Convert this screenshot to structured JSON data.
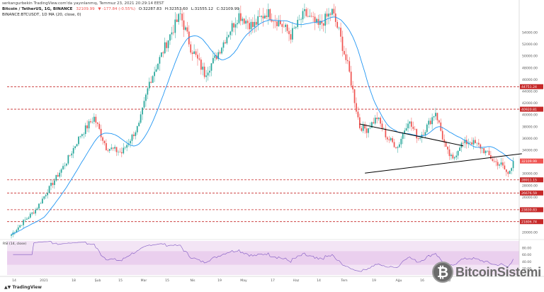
{
  "header": {
    "publish_line": "serkangurbekin TradingView.com'da yayınlanmış, Temmuz 23, 2021 20:29:14 EEST",
    "symbol_line": "BINANCE:BTCUSDT, 1D",
    "ohlc": [
      "32109.99",
      "▼ -177.84 (-0.55%)",
      "O:32287.83",
      "H:32353.60",
      "L:31555.12",
      "C:32109.99"
    ],
    "title_line": "Bitcoin / TetherUS, 1G, BINANCE",
    "ma_line": "MA (20, close, 0)"
  },
  "rsi_label": "RSI (14, close)",
  "branding": "TradingView",
  "watermark": {
    "text": "BitcoinSistemi",
    "coin_glyph": "₿"
  },
  "colors": {
    "up": "#26a69a",
    "down": "#ef5350",
    "ma": "#2196f3",
    "level": "#c62828",
    "rsi": "#7e57c2"
  },
  "chart_data": {
    "type": "candlestick",
    "title": "Bitcoin / TetherUS, 1G, BINANCE",
    "x_ticks": [
      "14",
      "2021",
      "18",
      "Şub",
      "15",
      "Mar",
      "15",
      "Nis",
      "19",
      "May",
      "17",
      "Haz",
      "14",
      "Tem",
      "19",
      "Ağu",
      "16",
      "Eki"
    ],
    "y_ticks": [
      "54000.00",
      "52000.00",
      "50000.00",
      "48000.00",
      "46000.00",
      "44000.00",
      "42000.00",
      "40000.00",
      "38000.00",
      "36000.00",
      "34000.00",
      "32000.00",
      "30000.00",
      "28000.00",
      "26000.00",
      "24000.00",
      "22000.00",
      "20000.00"
    ],
    "ylim": [
      19000,
      57800
    ],
    "levels": [
      44751.24,
      40920.81,
      28911.15,
      26676.59,
      23830.83,
      21806.74
    ],
    "current_price": 32109.99,
    "rsi_ticks": [
      "80.00",
      "60.00",
      "40.00",
      "20.00"
    ],
    "rsi_range": [
      0,
      100
    ],
    "triangle": {
      "upper": [
        [
          "Mayıs 19",
          38400
        ],
        [
          "Temmuz 9",
          34700
        ]
      ],
      "lower": [
        [
          "Mayıs 22",
          30050
        ],
        [
          "Temmuz 29",
          33350
        ]
      ]
    },
    "anchors": [
      {
        "t": 0,
        "p": 19600
      },
      {
        "t": 6,
        "p": 21500
      },
      {
        "t": 14,
        "p": 23800
      },
      {
        "t": 22,
        "p": 27500
      },
      {
        "t": 32,
        "p": 32000
      },
      {
        "t": 40,
        "p": 36500
      },
      {
        "t": 48,
        "p": 39500
      },
      {
        "t": 55,
        "p": 34500
      },
      {
        "t": 64,
        "p": 33500
      },
      {
        "t": 74,
        "p": 38200
      },
      {
        "t": 80,
        "p": 45500
      },
      {
        "t": 86,
        "p": 49500
      },
      {
        "t": 92,
        "p": 53500
      },
      {
        "t": 98,
        "p": 57000
      },
      {
        "t": 104,
        "p": 51500
      },
      {
        "t": 112,
        "p": 47000
      },
      {
        "t": 118,
        "p": 49500
      },
      {
        "t": 126,
        "p": 54000
      },
      {
        "t": 132,
        "p": 57000
      },
      {
        "t": 140,
        "p": 55000
      },
      {
        "t": 148,
        "p": 57400
      },
      {
        "t": 156,
        "p": 55500
      },
      {
        "t": 162,
        "p": 53500
      },
      {
        "t": 170,
        "p": 57200
      },
      {
        "t": 178,
        "p": 55000
      },
      {
        "t": 186,
        "p": 57500
      },
      {
        "t": 190,
        "p": 54000
      },
      {
        "t": 196,
        "p": 47000
      },
      {
        "t": 202,
        "p": 38000
      },
      {
        "t": 206,
        "p": 37500
      },
      {
        "t": 212,
        "p": 39500
      },
      {
        "t": 218,
        "p": 36000
      },
      {
        "t": 224,
        "p": 34500
      },
      {
        "t": 230,
        "p": 39000
      },
      {
        "t": 236,
        "p": 36000
      },
      {
        "t": 240,
        "p": 37500
      },
      {
        "t": 246,
        "p": 40500
      },
      {
        "t": 252,
        "p": 34000
      },
      {
        "t": 256,
        "p": 32200
      },
      {
        "t": 260,
        "p": 34800
      },
      {
        "t": 266,
        "p": 35500
      },
      {
        "t": 272,
        "p": 34500
      },
      {
        "t": 276,
        "p": 33300
      },
      {
        "t": 280,
        "p": 32000
      },
      {
        "t": 284,
        "p": 31500
      },
      {
        "t": 288,
        "p": 29800
      },
      {
        "t": 291,
        "p": 32100
      }
    ]
  }
}
